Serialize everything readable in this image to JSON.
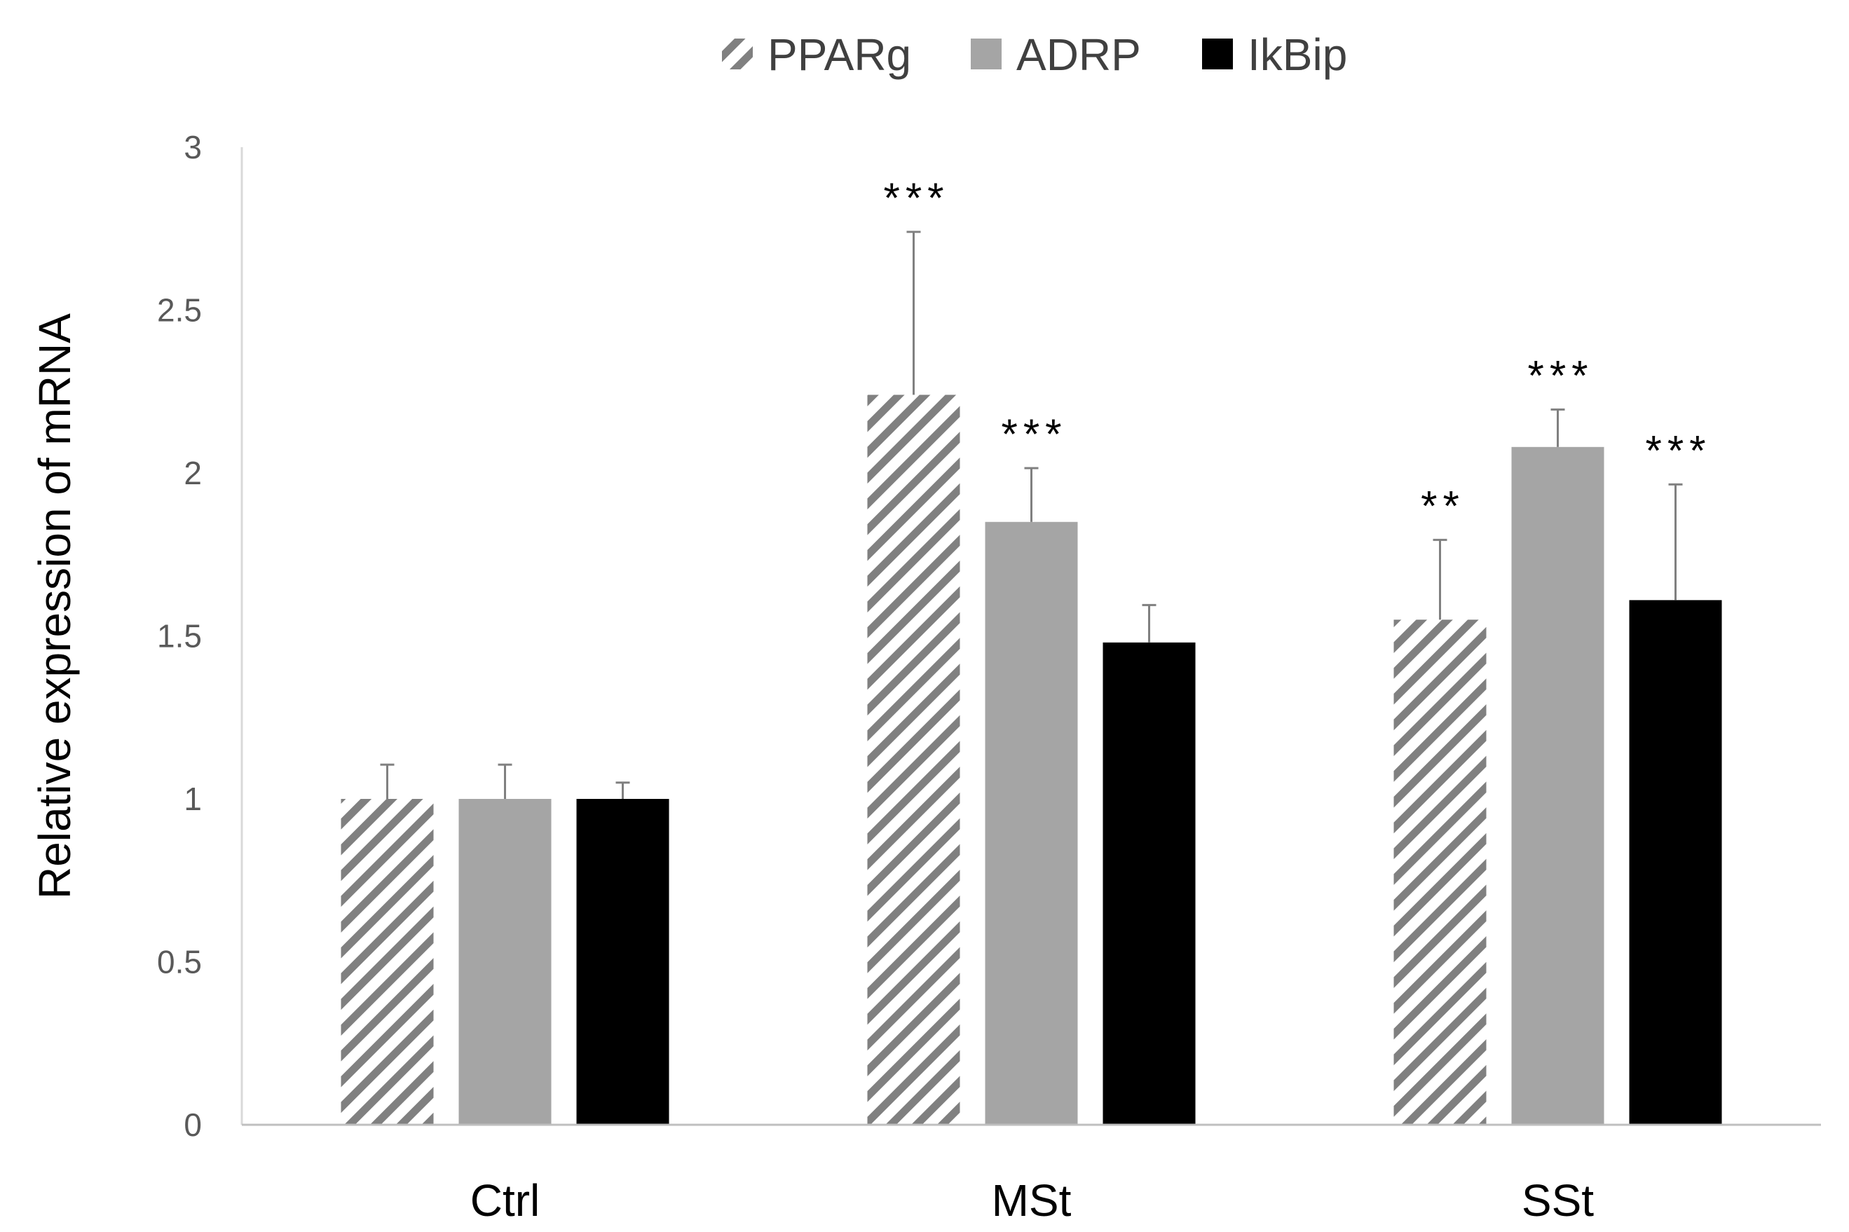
{
  "chart_data": {
    "type": "bar",
    "title": "",
    "xlabel": "",
    "ylabel": "Relative expression of mRNA",
    "ylim": [
      0,
      3
    ],
    "yticks": [
      "0",
      "0.5",
      "1",
      "1.5",
      "2",
      "2.5",
      "3"
    ],
    "grid": false,
    "legend_position": "top-center",
    "categories": [
      "Ctrl",
      "MSt",
      "SSt"
    ],
    "series": [
      {
        "name": "PPARg",
        "pattern": "diagonal-hatch",
        "color": "#808080",
        "values": [
          1.0,
          2.24,
          1.55
        ],
        "errors": [
          0.105,
          0.5,
          0.245
        ],
        "significance": [
          "",
          "***",
          "**"
        ]
      },
      {
        "name": "ADRP",
        "pattern": "solid",
        "color": "#a5a5a5",
        "values": [
          1.0,
          1.85,
          2.08
        ],
        "errors": [
          0.105,
          0.165,
          0.115
        ],
        "significance": [
          "",
          "***",
          "***"
        ]
      },
      {
        "name": "IkBip",
        "pattern": "solid",
        "color": "#000000",
        "values": [
          1.0,
          1.48,
          1.61
        ],
        "errors": [
          0.05,
          0.115,
          0.355
        ],
        "significance": [
          "",
          "",
          "***"
        ]
      }
    ]
  }
}
